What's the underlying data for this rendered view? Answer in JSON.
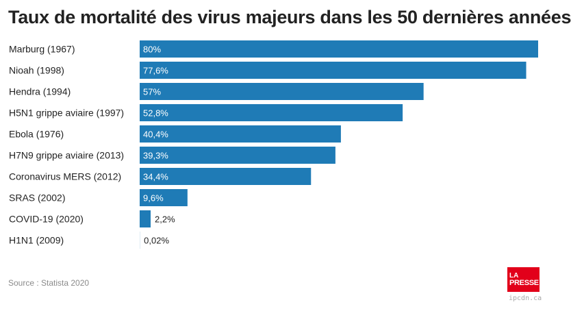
{
  "chart_data": {
    "type": "bar",
    "orientation": "horizontal",
    "title": "Taux de mortalité des virus majeurs dans les 50 dernières années",
    "categories": [
      "Marburg (1967)",
      "Nioah (1998)",
      "Hendra (1994)",
      "H5N1 grippe aviaire (1997)",
      "Ebola (1976)",
      "H7N9 grippe aviaire (2013)",
      "Coronavirus MERS (2012)",
      "SRAS (2002)",
      "COVID-19 (2020)",
      "H1N1 (2009)"
    ],
    "values": [
      80,
      77.6,
      57,
      52.8,
      40.4,
      39.3,
      34.4,
      9.6,
      2.2,
      0.02
    ],
    "value_labels": [
      "80%",
      "77,6%",
      "57%",
      "52,8%",
      "40,4%",
      "39,3%",
      "34,4%",
      "9,6%",
      "2,2%",
      "0,02%"
    ],
    "xlim": [
      0,
      80
    ],
    "grid": false,
    "bar_color": "#1f7bb6"
  },
  "source": "Source : Statista 2020",
  "logo": {
    "line1": "LA",
    "line2": "PRESSE",
    "color": "#e2001a"
  },
  "watermark": "ipcdn.ca"
}
